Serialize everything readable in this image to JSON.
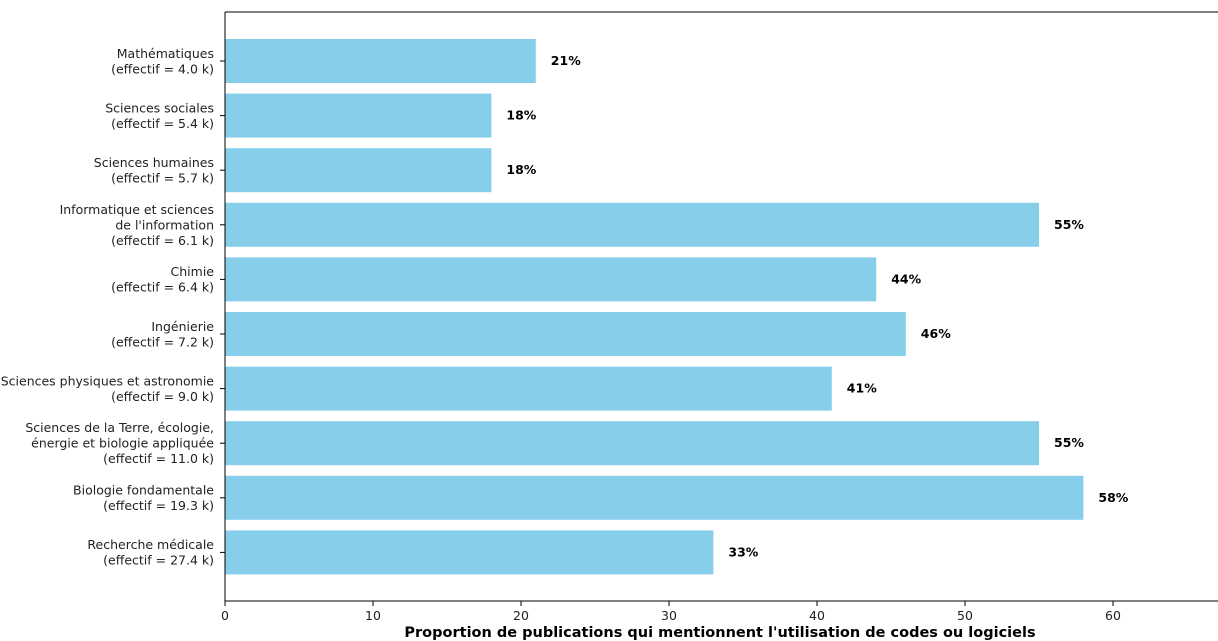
{
  "chart_data": {
    "type": "bar",
    "orientation": "horizontal",
    "title": "",
    "xlabel": "Proportion de publications qui mentionnent l'utilisation de codes ou logiciels",
    "ylabel": "",
    "xlim": [
      0,
      67
    ],
    "xticks": [
      0,
      10,
      20,
      30,
      40,
      50,
      60
    ],
    "grid": false,
    "bar_color": "#87ceeb",
    "categories": [
      [
        "Mathématiques",
        "(effectif = 4.0 k)"
      ],
      [
        "Sciences sociales",
        "(effectif = 5.4 k)"
      ],
      [
        "Sciences humaines",
        "(effectif = 5.7 k)"
      ],
      [
        "Informatique et sciences",
        "de l'information",
        "(effectif = 6.1 k)"
      ],
      [
        "Chimie",
        "(effectif = 6.4 k)"
      ],
      [
        "Ingénierie",
        "(effectif = 7.2 k)"
      ],
      [
        "Sciences physiques et astronomie",
        "(effectif = 9.0 k)"
      ],
      [
        "Sciences de la Terre, écologie,",
        "énergie et biologie appliquée",
        "(effectif = 11.0 k)"
      ],
      [
        "Biologie fondamentale",
        "(effectif = 19.3 k)"
      ],
      [
        "Recherche médicale",
        "(effectif = 27.4 k)"
      ]
    ],
    "values": [
      21,
      18,
      18,
      55,
      44,
      46,
      41,
      55,
      58,
      33
    ],
    "data_labels": [
      "21%",
      "18%",
      "18%",
      "55%",
      "44%",
      "46%",
      "41%",
      "55%",
      "58%",
      "33%"
    ]
  }
}
